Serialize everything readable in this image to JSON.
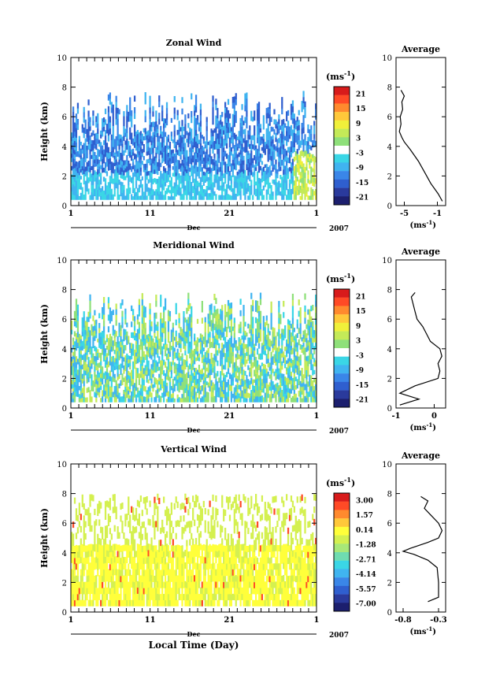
{
  "figure": {
    "xlabel": "Local Time (Day)",
    "month": "Dec",
    "year": "2007",
    "unit_label": "(ms",
    "unit_sup": "-1",
    "profile_unit": "(ms",
    "profile_title": "Average"
  },
  "chart_data": [
    {
      "type": "heatmap",
      "title": "Zonal Wind",
      "ylabel": "Height (km)",
      "xlabel": "Dec",
      "x_ticks": [
        "1",
        "11",
        "21",
        "1"
      ],
      "xlim": [
        1,
        32
      ],
      "ylim": [
        0,
        10
      ],
      "y_ticks": [
        0,
        2,
        4,
        6,
        8,
        10
      ],
      "data_top_km": 7.8,
      "colorbar": {
        "unit": "(ms-1)",
        "ticks": [
          "21",
          "15",
          "9",
          "3",
          "-3",
          "-9",
          "-15",
          "-21"
        ],
        "range": [
          -24,
          24
        ],
        "colors": [
          "#1c1f6e",
          "#2a3a9c",
          "#2f5fcf",
          "#3a86e8",
          "#40b4f0",
          "#3ad6e6",
          "#ffffff",
          "#8fe07a",
          "#c4ea58",
          "#f0f03a",
          "#ffc83a",
          "#ff8a2e",
          "#ff4a26",
          "#d81b1b"
        ]
      },
      "profile": {
        "title": "Average",
        "xlim": [
          -6,
          0
        ],
        "x_ticks": [
          "-5",
          "-1"
        ],
        "x_tick_values": [
          -5,
          -1
        ],
        "height_km": [
          0.3,
          0.8,
          1.5,
          2.2,
          3.0,
          3.8,
          4.3,
          4.6,
          5.0,
          5.5,
          6.0,
          6.5,
          7.0,
          7.4,
          7.8
        ],
        "mean_ms": [
          -0.4,
          -0.9,
          -1.8,
          -2.5,
          -3.3,
          -4.3,
          -5.0,
          -5.3,
          -5.6,
          -5.4,
          -5.5,
          -5.2,
          -5.3,
          -5.0,
          -5.4
        ]
      }
    },
    {
      "type": "heatmap",
      "title": "Meridional Wind",
      "ylabel": "Height (km)",
      "xlabel": "Dec",
      "x_ticks": [
        "1",
        "11",
        "21",
        "1"
      ],
      "xlim": [
        1,
        32
      ],
      "ylim": [
        0,
        10
      ],
      "y_ticks": [
        0,
        2,
        4,
        6,
        8,
        10
      ],
      "data_top_km": 7.8,
      "colorbar": {
        "unit": "(ms-1)",
        "ticks": [
          "21",
          "15",
          "9",
          "3",
          "-3",
          "-9",
          "-15",
          "-21"
        ],
        "range": [
          -24,
          24
        ],
        "colors": [
          "#1c1f6e",
          "#2a3a9c",
          "#2f5fcf",
          "#3a86e8",
          "#40b4f0",
          "#3ad6e6",
          "#ffffff",
          "#8fe07a",
          "#c4ea58",
          "#f0f03a",
          "#ffc83a",
          "#ff8a2e",
          "#ff4a26",
          "#d81b1b"
        ]
      },
      "profile": {
        "title": "Average",
        "xlim": [
          -1,
          0.3
        ],
        "x_ticks": [
          "-1",
          "0"
        ],
        "x_tick_values": [
          -1,
          0
        ],
        "height_km": [
          0.2,
          0.6,
          1.0,
          1.5,
          2.0,
          2.5,
          3.0,
          3.5,
          4.0,
          4.5,
          5.0,
          5.5,
          6.0,
          6.5,
          7.0,
          7.5,
          7.8
        ],
        "mean_ms": [
          -0.9,
          -0.4,
          -0.9,
          -0.5,
          0.1,
          0.15,
          0.1,
          0.2,
          0.15,
          -0.1,
          -0.2,
          -0.3,
          -0.45,
          -0.5,
          -0.55,
          -0.6,
          -0.5
        ]
      }
    },
    {
      "type": "heatmap",
      "title": "Vertical Wind",
      "ylabel": "Height (km)",
      "xlabel": "Dec",
      "x_ticks": [
        "1",
        "11",
        "21",
        "1"
      ],
      "xlim": [
        1,
        32
      ],
      "ylim": [
        0,
        10
      ],
      "y_ticks": [
        0,
        2,
        4,
        6,
        8,
        10
      ],
      "data_top_km": 8.0,
      "colorbar": {
        "unit": "(ms-1)",
        "ticks": [
          "3.00",
          "1.57",
          "0.14",
          "-1.28",
          "-2.71",
          "-4.14",
          "-5.57",
          "-7.00"
        ],
        "range": [
          -7.7,
          3.7
        ],
        "colors": [
          "#1c1f6e",
          "#2a3a9c",
          "#2f5fcf",
          "#3a86e8",
          "#40b4f0",
          "#3ad6e6",
          "#6fdcb0",
          "#a8e878",
          "#d4f050",
          "#ffff3a",
          "#ffc83a",
          "#ff8a2e",
          "#ff4a26",
          "#d81b1b"
        ]
      },
      "profile": {
        "title": "Average",
        "xlim": [
          -0.9,
          -0.2
        ],
        "x_ticks": [
          "-0.8",
          "-0.3"
        ],
        "x_tick_values": [
          -0.8,
          -0.3
        ],
        "height_km": [
          0.7,
          1.0,
          2.0,
          3.0,
          3.5,
          3.9,
          4.1,
          4.3,
          4.7,
          5.0,
          5.5,
          6.0,
          6.5,
          7.0,
          7.5,
          7.8
        ],
        "mean_ms": [
          -0.45,
          -0.3,
          -0.3,
          -0.32,
          -0.45,
          -0.65,
          -0.8,
          -0.7,
          -0.45,
          -0.3,
          -0.25,
          -0.3,
          -0.4,
          -0.5,
          -0.45,
          -0.55
        ]
      }
    }
  ]
}
